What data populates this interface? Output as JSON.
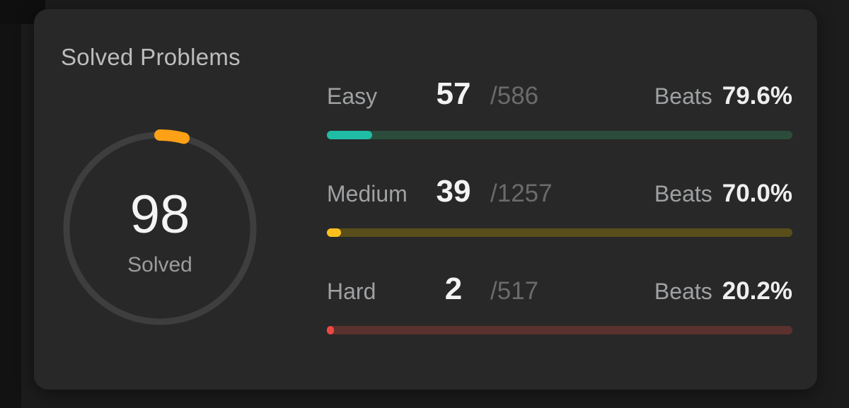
{
  "card": {
    "title": "Solved Problems",
    "background": "#282828",
    "page_background": "#1c1c1c"
  },
  "ring": {
    "solved": 98,
    "solved_label": "Solved",
    "arc_color": "#ffa116",
    "track_color": "#3e3e3e"
  },
  "rows": [
    {
      "label": "Easy",
      "count": 57,
      "total_num": 586,
      "total_display": "/586",
      "beats_label": "Beats",
      "beats_value": "79.6%",
      "fill_color": "#1fbda5",
      "track_color": "#2b4c3a"
    },
    {
      "label": "Medium",
      "count": 39,
      "total_num": 1257,
      "total_display": "/1257",
      "beats_label": "Beats",
      "beats_value": "70.0%",
      "fill_color": "#ffc01e",
      "track_color": "#594e1a"
    },
    {
      "label": "Hard",
      "count": 2,
      "total_num": 517,
      "total_display": "/517",
      "beats_label": "Beats",
      "beats_value": "20.2%",
      "fill_color": "#ef4743",
      "track_color": "#5b312d"
    }
  ]
}
